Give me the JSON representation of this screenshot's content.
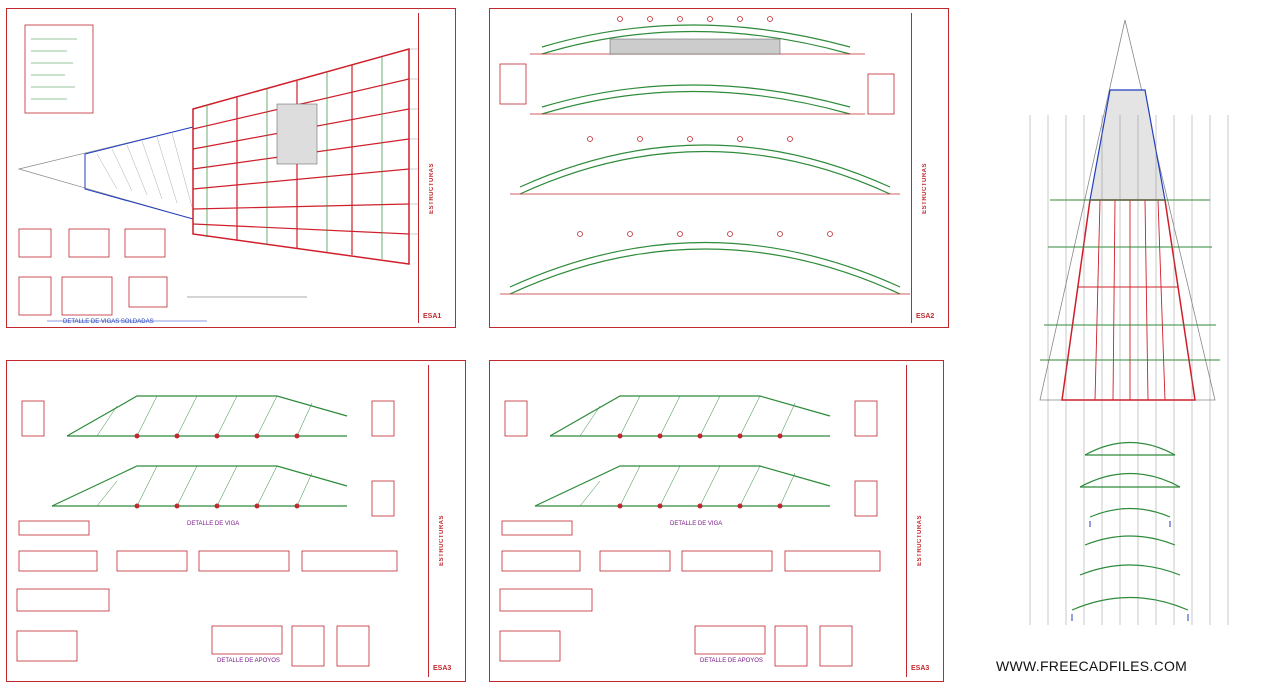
{
  "sheets": {
    "roof_plan": {
      "caption": "DETALLE DE VIGAS SOLDADAS",
      "title": "ESTRUCTURAS",
      "code": "ESA1"
    },
    "arches": {
      "title": "ESTRUCTURAS",
      "code": "ESA2"
    },
    "trusses_a": {
      "title": "ESTRUCTURAS",
      "code": "ESA3",
      "caption_main": "DETALLE DE VIGA",
      "caption_details": "DETALLE DE APOYOS"
    },
    "trusses_b": {
      "title": "ESTRUCTURAS",
      "code": "ESA3",
      "caption_main": "DETALLE DE VIGA",
      "caption_details": "DETALLE DE APOYOS"
    }
  },
  "watermark": "WWW.FREECADFILES.COM",
  "colors": {
    "border": "#c0282d",
    "truss": "#2e8b3a",
    "beam": "#d01f2a",
    "blue": "#1f3fc0",
    "magenta": "#a020a0"
  }
}
